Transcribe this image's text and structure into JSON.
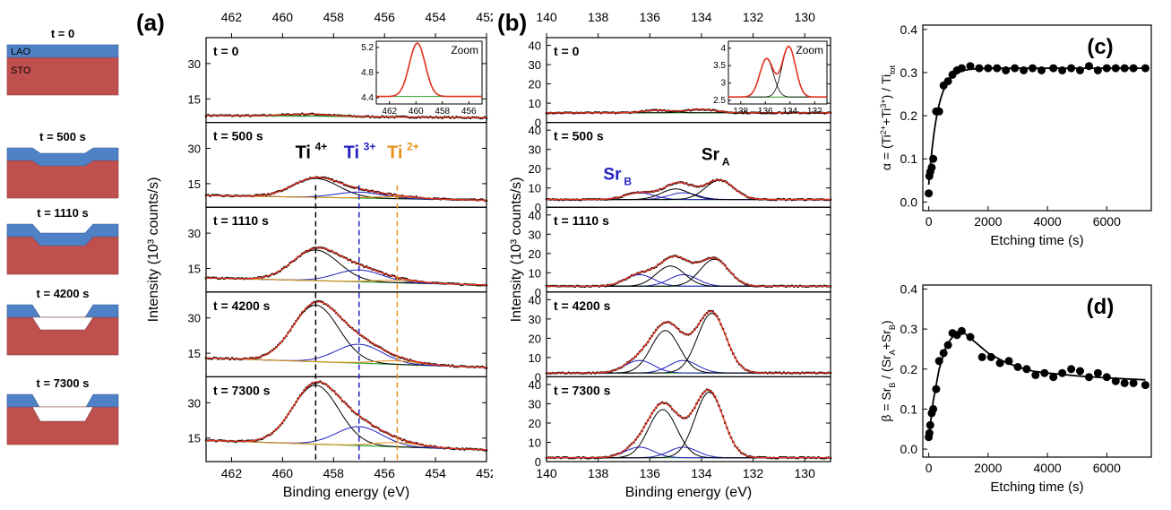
{
  "schematic": {
    "labels": [
      "t = 0",
      "t = 500 s",
      "t = 1110 s",
      "t = 4200 s",
      "t = 7300 s"
    ],
    "layer_top": "LAO",
    "layer_bottom": "STO",
    "colors": {
      "lao": "#4f81c7",
      "sto": "#c0504d"
    }
  },
  "colors": {
    "data": "#000000",
    "fit": "#e0301e",
    "bkg": "#2a9d2a",
    "ti4": "#000000",
    "ti3": "#2020c0",
    "ti2": "#e8901a",
    "srA": "#000000",
    "srB": "#2020c0"
  },
  "chart_data": [
    {
      "id": "a",
      "type": "line",
      "panel_label": "(a)",
      "xlabel": "Binding energy (eV)",
      "ylabel": "Intensity (10³ counts/s)",
      "xlim": [
        463,
        452
      ],
      "xticks": [
        462,
        460,
        458,
        456,
        454,
        452
      ],
      "ylim": [
        5,
        41
      ],
      "yticks": [
        15,
        30
      ],
      "peak_labels": {
        "ti4": "Ti",
        "ti4_sup": "4+",
        "ti3": "Ti",
        "ti3_sup": "3+",
        "ti2": "Ti",
        "ti2_sup": "2+"
      },
      "dashed_lines": [
        {
          "name": "Ti4+",
          "x": 458.7,
          "color": "#000000"
        },
        {
          "name": "Ti3+",
          "x": 457.0,
          "color": "#2020c0"
        },
        {
          "name": "Ti2+",
          "x": 455.5,
          "color": "#e8901a"
        }
      ],
      "inset": {
        "title": "Zoom",
        "xlim": [
          463,
          455
        ],
        "xticks": [
          462,
          460,
          458,
          456
        ],
        "ylim": [
          4.3,
          5.3
        ],
        "yticks": [
          4.4,
          4.8,
          5.2
        ],
        "peaks": [
          {
            "c": 459.9,
            "w": 0.6,
            "a": 0.85
          }
        ],
        "base": 4.42
      },
      "subpanels": [
        {
          "label": "t = 0",
          "base_left": 8.0,
          "base_right": 7.0,
          "peaks": [
            {
              "name": "Ti4+",
              "c": 459.0,
              "w": 0.9,
              "a": 0.9
            }
          ]
        },
        {
          "label": "t = 500 s",
          "base_left": 10.0,
          "base_right": 8.0,
          "peaks": [
            {
              "name": "Ti4+",
              "c": 458.7,
              "w": 0.9,
              "a": 8.0
            },
            {
              "name": "Ti3+",
              "c": 457.0,
              "w": 0.9,
              "a": 2.5
            },
            {
              "name": "Ti2+",
              "c": 455.5,
              "w": 0.9,
              "a": 0.8
            }
          ]
        },
        {
          "label": "t = 1110 s",
          "base_left": 11.0,
          "base_right": 8.0,
          "peaks": [
            {
              "name": "Ti4+",
              "c": 458.7,
              "w": 0.9,
              "a": 13.0
            },
            {
              "name": "Ti3+",
              "c": 457.0,
              "w": 0.9,
              "a": 5.0
            },
            {
              "name": "Ti2+",
              "c": 455.5,
              "w": 0.9,
              "a": 1.0
            }
          ]
        },
        {
          "label": "t = 4200 s",
          "base_left": 13.0,
          "base_right": 9.0,
          "peaks": [
            {
              "name": "Ti4+",
              "c": 458.7,
              "w": 0.9,
              "a": 24.0
            },
            {
              "name": "Ti3+",
              "c": 457.0,
              "w": 0.9,
              "a": 8.0
            },
            {
              "name": "Ti2+",
              "c": 455.5,
              "w": 0.9,
              "a": 1.5
            }
          ]
        },
        {
          "label": "t = 7300 s",
          "base_left": 14.0,
          "base_right": 10.0,
          "peaks": [
            {
              "name": "Ti4+",
              "c": 458.7,
              "w": 0.9,
              "a": 25.0
            },
            {
              "name": "Ti3+",
              "c": 457.0,
              "w": 0.9,
              "a": 8.0
            },
            {
              "name": "Ti2+",
              "c": 455.5,
              "w": 0.9,
              "a": 1.8
            }
          ]
        }
      ]
    },
    {
      "id": "b",
      "type": "line",
      "panel_label": "(b)",
      "xlabel": "Binding energy (eV)",
      "ylabel": "Intensity (10³ counts/s)",
      "xlim": [
        140,
        129
      ],
      "xticks": [
        140,
        138,
        136,
        134,
        132,
        130
      ],
      "ylim": [
        0,
        44
      ],
      "yticks": [
        0,
        10,
        20,
        30,
        40
      ],
      "peak_labels": {
        "srB": "Sr",
        "srB_sub": "B",
        "srA": "Sr",
        "srA_sub": "A"
      },
      "inset": {
        "title": "Zoom",
        "xlim": [
          139,
          131
        ],
        "xticks": [
          138,
          136,
          134,
          132
        ],
        "ylim": [
          2.4,
          4.2
        ],
        "yticks": [
          2.5,
          3.0,
          3.5,
          4.0
        ],
        "peaks": [
          {
            "c": 135.9,
            "w": 0.55,
            "a": 1.1
          },
          {
            "c": 134.1,
            "w": 0.55,
            "a": 1.45
          }
        ],
        "base": 2.6
      },
      "subpanels": [
        {
          "label": "t = 0",
          "base_left": 5.0,
          "base_right": 5.0,
          "peaks": [
            {
              "name": "SrA-1",
              "c": 135.7,
              "w": 0.55,
              "a": 1.3
            },
            {
              "name": "SrA-2",
              "c": 134.0,
              "w": 0.55,
              "a": 1.8
            }
          ]
        },
        {
          "label": "t = 500 s",
          "base_left": 4.0,
          "base_right": 4.0,
          "peaks": [
            {
              "name": "SrB-1",
              "c": 136.4,
              "w": 0.55,
              "a": 3.5
            },
            {
              "name": "SrB-2",
              "c": 134.7,
              "w": 0.55,
              "a": 3.5
            },
            {
              "name": "SrA-1",
              "c": 135.0,
              "w": 0.55,
              "a": 5.5
            },
            {
              "name": "SrA-2",
              "c": 133.3,
              "w": 0.55,
              "a": 10.0
            }
          ]
        },
        {
          "label": "t = 1110 s",
          "base_left": 3.0,
          "base_right": 3.0,
          "peaks": [
            {
              "name": "SrB-1",
              "c": 136.4,
              "w": 0.55,
              "a": 6.0
            },
            {
              "name": "SrB-2",
              "c": 134.7,
              "w": 0.55,
              "a": 6.0
            },
            {
              "name": "SrA-1",
              "c": 135.2,
              "w": 0.55,
              "a": 10.5
            },
            {
              "name": "SrA-2",
              "c": 133.5,
              "w": 0.55,
              "a": 14.0
            }
          ]
        },
        {
          "label": "t = 4200 s",
          "base_left": 2.0,
          "base_right": 2.0,
          "peaks": [
            {
              "name": "SrB-1",
              "c": 136.4,
              "w": 0.55,
              "a": 6.5
            },
            {
              "name": "SrB-2",
              "c": 134.7,
              "w": 0.55,
              "a": 6.5
            },
            {
              "name": "SrA-1",
              "c": 135.4,
              "w": 0.55,
              "a": 22.0
            },
            {
              "name": "SrA-2",
              "c": 133.6,
              "w": 0.55,
              "a": 31.0
            }
          ]
        },
        {
          "label": "t = 7300 s",
          "base_left": 2.0,
          "base_right": 2.0,
          "peaks": [
            {
              "name": "SrB-1",
              "c": 136.4,
              "w": 0.55,
              "a": 5.5
            },
            {
              "name": "SrB-2",
              "c": 134.7,
              "w": 0.55,
              "a": 5.5
            },
            {
              "name": "SrA-1",
              "c": 135.5,
              "w": 0.55,
              "a": 25.0
            },
            {
              "name": "SrA-2",
              "c": 133.7,
              "w": 0.55,
              "a": 34.0
            }
          ]
        }
      ]
    },
    {
      "id": "c",
      "type": "scatter",
      "panel_label": "(c)",
      "xlabel": "Etching time (s)",
      "ylabel_parts": [
        "α = (Ti",
        "2+",
        "+Ti",
        "3+",
        ") / Ti",
        "tot"
      ],
      "xlim": [
        -200,
        7500
      ],
      "xticks": [
        0,
        2000,
        4000,
        6000
      ],
      "ylim": [
        -0.02,
        0.41
      ],
      "yticks": [
        0.0,
        0.1,
        0.2,
        0.3,
        0.4
      ],
      "points": [
        [
          0,
          0.02
        ],
        [
          20,
          0.06
        ],
        [
          50,
          0.07
        ],
        [
          100,
          0.08
        ],
        [
          150,
          0.1
        ],
        [
          250,
          0.21
        ],
        [
          350,
          0.21
        ],
        [
          500,
          0.27
        ],
        [
          650,
          0.28
        ],
        [
          800,
          0.295
        ],
        [
          950,
          0.305
        ],
        [
          1110,
          0.31
        ],
        [
          1400,
          0.315
        ],
        [
          1700,
          0.31
        ],
        [
          2000,
          0.31
        ],
        [
          2300,
          0.31
        ],
        [
          2600,
          0.305
        ],
        [
          2900,
          0.31
        ],
        [
          3200,
          0.305
        ],
        [
          3500,
          0.31
        ],
        [
          3800,
          0.305
        ],
        [
          4200,
          0.31
        ],
        [
          4500,
          0.305
        ],
        [
          4800,
          0.31
        ],
        [
          5100,
          0.305
        ],
        [
          5400,
          0.315
        ],
        [
          5700,
          0.305
        ],
        [
          6000,
          0.31
        ],
        [
          6300,
          0.31
        ],
        [
          6600,
          0.31
        ],
        [
          6900,
          0.31
        ],
        [
          7300,
          0.31
        ]
      ],
      "fit": {
        "type": "saturation",
        "plateau": 0.31,
        "y0": 0.04,
        "tau": 300
      }
    },
    {
      "id": "d",
      "type": "scatter",
      "panel_label": "(d)",
      "xlabel": "Etching time (s)",
      "ylabel_parts": [
        "β = Sr",
        "B",
        " / (Sr",
        "A",
        "+Sr",
        "B",
        ")"
      ],
      "xlim": [
        -200,
        7500
      ],
      "xticks": [
        0,
        2000,
        4000,
        6000
      ],
      "ylim": [
        -0.02,
        0.41
      ],
      "yticks": [
        0.0,
        0.1,
        0.2,
        0.3,
        0.4
      ],
      "points": [
        [
          0,
          0.03
        ],
        [
          20,
          0.04
        ],
        [
          50,
          0.06
        ],
        [
          100,
          0.09
        ],
        [
          150,
          0.1
        ],
        [
          250,
          0.15
        ],
        [
          350,
          0.22
        ],
        [
          500,
          0.24
        ],
        [
          650,
          0.26
        ],
        [
          800,
          0.29
        ],
        [
          950,
          0.285
        ],
        [
          1110,
          0.295
        ],
        [
          1400,
          0.28
        ],
        [
          1800,
          0.23
        ],
        [
          2100,
          0.23
        ],
        [
          2400,
          0.215
        ],
        [
          2700,
          0.22
        ],
        [
          3000,
          0.205
        ],
        [
          3300,
          0.2
        ],
        [
          3600,
          0.185
        ],
        [
          3900,
          0.19
        ],
        [
          4200,
          0.18
        ],
        [
          4500,
          0.19
        ],
        [
          4800,
          0.2
        ],
        [
          5100,
          0.195
        ],
        [
          5400,
          0.18
        ],
        [
          5700,
          0.19
        ],
        [
          6000,
          0.18
        ],
        [
          6300,
          0.17
        ],
        [
          6600,
          0.165
        ],
        [
          6900,
          0.165
        ],
        [
          7300,
          0.16
        ]
      ],
      "fit": {
        "type": "rise-decay",
        "curve": [
          [
            0,
            0.03
          ],
          [
            150,
            0.12
          ],
          [
            350,
            0.2
          ],
          [
            600,
            0.26
          ],
          [
            900,
            0.29
          ],
          [
            1200,
            0.29
          ],
          [
            1600,
            0.265
          ],
          [
            2000,
            0.24
          ],
          [
            2500,
            0.22
          ],
          [
            3000,
            0.205
          ],
          [
            3500,
            0.195
          ],
          [
            4000,
            0.19
          ],
          [
            5000,
            0.183
          ],
          [
            6000,
            0.178
          ],
          [
            7300,
            0.173
          ]
        ]
      }
    }
  ]
}
